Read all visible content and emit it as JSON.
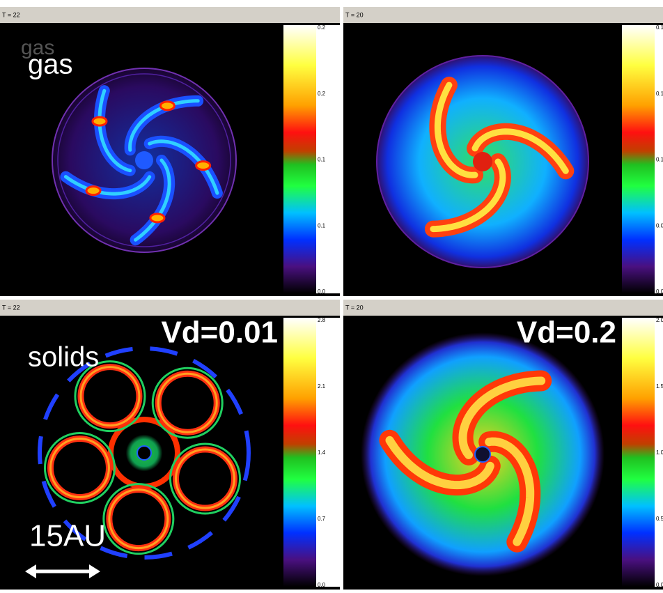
{
  "panels": [
    {
      "title": "T = 22",
      "ghost_label": "gas",
      "label": "gas",
      "colorbar": [
        "0.2",
        "0.2",
        "0.1",
        "0.1",
        "0.0"
      ]
    },
    {
      "title": "T = 20",
      "colorbar": [
        "0.1",
        "0.1",
        "0.1",
        "0.0",
        "0.0"
      ]
    },
    {
      "title": "T = 22",
      "label": "solids",
      "parameter": "Vd=0.01",
      "scale": "15AU",
      "colorbar": [
        "2.8",
        "2.1",
        "1.4",
        "0.7",
        "0.0"
      ]
    },
    {
      "title": "T = 20",
      "parameter": "Vd=0.2",
      "colorbar": [
        "2.0",
        "1.5",
        "1.0",
        "0.5",
        "0.0"
      ]
    }
  ]
}
